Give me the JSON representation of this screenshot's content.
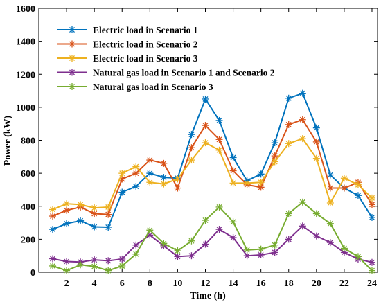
{
  "chart_data": {
    "type": "line",
    "xlabel": "Time (h)",
    "ylabel": "Power (kW)",
    "xlim": [
      0,
      24.4
    ],
    "ylim": [
      0,
      1600
    ],
    "x": [
      1,
      2,
      3,
      4,
      5,
      6,
      7,
      8,
      9,
      10,
      11,
      12,
      13,
      14,
      15,
      16,
      17,
      18,
      19,
      20,
      21,
      22,
      23,
      24
    ],
    "xticks": [
      "2",
      "4",
      "6",
      "8",
      "10",
      "12",
      "14",
      "16",
      "18",
      "20",
      "22",
      "24"
    ],
    "xtick_values": [
      2,
      4,
      6,
      8,
      10,
      12,
      14,
      16,
      18,
      20,
      22,
      24
    ],
    "yticks": [
      "0",
      "200",
      "400",
      "600",
      "800",
      "1000",
      "1200",
      "1400",
      "1600"
    ],
    "ytick_values": [
      0,
      200,
      400,
      600,
      800,
      1000,
      1200,
      1400,
      1600
    ],
    "grid": false,
    "legend_position": "top-left",
    "series": [
      {
        "name": "Electric load in Scenario 1",
        "color": "#0072BD",
        "values": [
          260,
          295,
          312,
          275,
          273,
          485,
          520,
          600,
          575,
          570,
          835,
          1050,
          920,
          695,
          555,
          595,
          785,
          1055,
          1085,
          875,
          590,
          510,
          465,
          332
        ]
      },
      {
        "name": "Electric load in Scenario 2",
        "color": "#D95319",
        "values": [
          340,
          375,
          395,
          355,
          350,
          565,
          600,
          680,
          660,
          510,
          755,
          890,
          805,
          615,
          530,
          515,
          705,
          895,
          925,
          790,
          510,
          510,
          545,
          410
        ]
      },
      {
        "name": "Electric load in Scenario 3",
        "color": "#EDB120",
        "values": [
          380,
          415,
          410,
          390,
          395,
          600,
          640,
          545,
          535,
          565,
          680,
          785,
          740,
          540,
          540,
          545,
          670,
          780,
          810,
          690,
          420,
          570,
          530,
          450
        ]
      },
      {
        "name": "Natural gas load in Scenario 1 and Scenario 2",
        "color": "#7E2F8E",
        "values": [
          82,
          65,
          62,
          75,
          70,
          80,
          165,
          225,
          160,
          95,
          100,
          170,
          260,
          210,
          100,
          105,
          120,
          200,
          280,
          220,
          180,
          120,
          80,
          60
        ]
      },
      {
        "name": "Natural gas load in Scenario 3",
        "color": "#77AC30",
        "values": [
          38,
          10,
          45,
          35,
          10,
          38,
          110,
          255,
          175,
          130,
          190,
          315,
          395,
          305,
          135,
          140,
          165,
          355,
          425,
          355,
          295,
          145,
          95,
          10
        ]
      }
    ]
  }
}
